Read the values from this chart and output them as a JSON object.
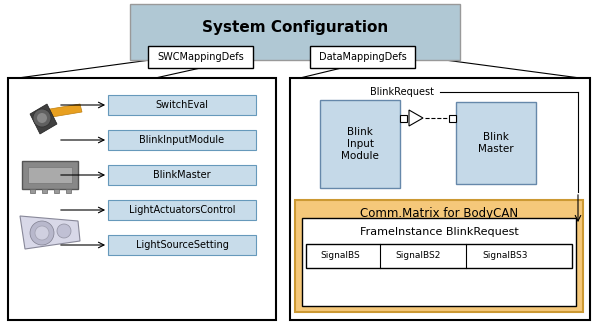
{
  "title": "System Configuration",
  "title_box_color": "#b0c8d4",
  "title_fontsize": 11,
  "swc_label": "SWCMappingDefs",
  "data_label": "DataMappingDefs",
  "swc_items": [
    "SwitchEval",
    "BlinkInputModule",
    "BlinkMaster",
    "LightActuatorsControl",
    "LightSourceSetting"
  ],
  "swc_item_color": "#c8dcea",
  "box_light_blue": "#c5d9e8",
  "comm_matrix_color": "#f5c87a",
  "comm_matrix_label": "Comm.Matrix for BodyCAN",
  "frame_instance_label": "FrameInstance BlinkRequest",
  "blink_request_label": "BlinkRequest",
  "signal_labels": [
    "SignalBS",
    "SignalBS2",
    "SignalBS3"
  ],
  "bg_color": "white"
}
